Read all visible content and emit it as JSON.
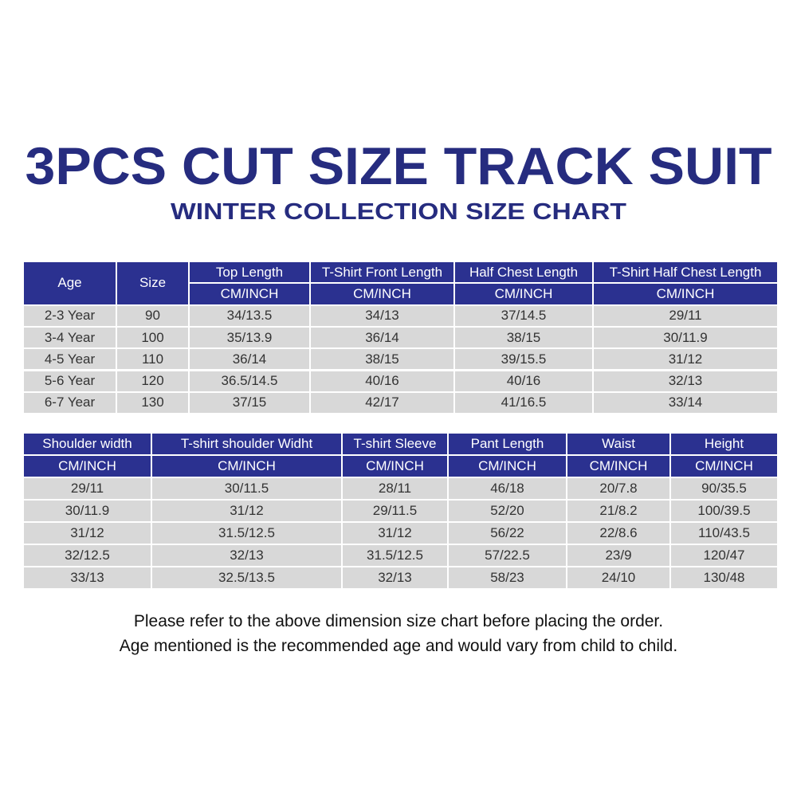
{
  "header": {
    "title": "3PCS CUT SIZE TRACK SUIT",
    "subtitle": "WINTER COLLECTION SIZE CHART"
  },
  "table1": {
    "columns": [
      {
        "label": "Age"
      },
      {
        "label": "Size"
      },
      {
        "label": "Top Length",
        "unit": "CM/INCH"
      },
      {
        "label": "T-Shirt Front Length",
        "unit": "CM/INCH"
      },
      {
        "label": "Half Chest Length",
        "unit": "CM/INCH"
      },
      {
        "label": "T-Shirt Half Chest Length",
        "unit": "CM/INCH"
      }
    ],
    "rows": [
      [
        "2-3 Year",
        "90",
        "34/13.5",
        "34/13",
        "37/14.5",
        "29/11"
      ],
      [
        "3-4 Year",
        "100",
        "35/13.9",
        "36/14",
        "38/15",
        "30/11.9"
      ],
      [
        "4-5 Year",
        "110",
        "36/14",
        "38/15",
        "39/15.5",
        "31/12"
      ],
      [
        "5-6 Year",
        "120",
        "36.5/14.5",
        "40/16",
        "40/16",
        "32/13"
      ],
      [
        "6-7 Year",
        "130",
        "37/15",
        "42/17",
        "41/16.5",
        "33/14"
      ]
    ]
  },
  "table2": {
    "columns": [
      {
        "label": "Shoulder width",
        "unit": "CM/INCH"
      },
      {
        "label": "T-shirt shoulder Widht",
        "unit": "CM/INCH"
      },
      {
        "label": "T-shirt Sleeve",
        "unit": "CM/INCH"
      },
      {
        "label": "Pant Length",
        "unit": "CM/INCH"
      },
      {
        "label": "Waist",
        "unit": "CM/INCH"
      },
      {
        "label": "Height",
        "unit": "CM/INCH"
      }
    ],
    "rows": [
      [
        "29/11",
        "30/11.5",
        "28/11",
        "46/18",
        "20/7.8",
        "90/35.5"
      ],
      [
        "30/11.9",
        "31/12",
        "29/11.5",
        "52/20",
        "21/8.2",
        "100/39.5"
      ],
      [
        "31/12",
        "31.5/12.5",
        "31/12",
        "56/22",
        "22/8.6",
        "110/43.5"
      ],
      [
        "32/12.5",
        "32/13",
        "31.5/12.5",
        "57/22.5",
        "23/9",
        "120/47"
      ],
      [
        "33/13",
        "32.5/13.5",
        "32/13",
        "58/23",
        "24/10",
        "130/48"
      ]
    ]
  },
  "footer": {
    "lines": [
      "Please refer to the above dimension size chart before placing the order.",
      "Age mentioned is the recommended age and would vary from child to child."
    ]
  }
}
